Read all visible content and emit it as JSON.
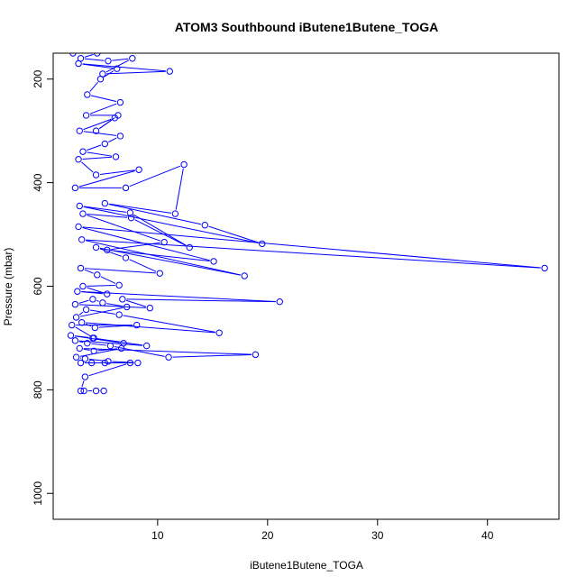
{
  "chart_data": {
    "type": "line",
    "title": "ATOM3 Southbound iButene1Butene_TOGA",
    "xlabel": "iButene1Butene_TOGA",
    "ylabel": "Pressure (mbar)",
    "xlim": [
      0.5,
      46.5
    ],
    "ylim": [
      1050,
      150
    ],
    "y_reversed": true,
    "x_ticks": [
      10,
      20,
      30,
      40
    ],
    "y_ticks": [
      200,
      400,
      600,
      800,
      1000
    ],
    "grid": false,
    "legend": "none",
    "series_color": "#0000FF",
    "series": [
      {
        "points": [
          [
            2.3,
            150
          ],
          [
            4.5,
            150
          ],
          [
            3.0,
            160
          ],
          [
            5.5,
            165
          ],
          [
            7.7,
            160
          ],
          [
            5.0,
            190
          ],
          [
            11.1,
            185
          ],
          [
            2.8,
            170
          ],
          [
            6.3,
            180
          ],
          [
            4.8,
            200
          ],
          [
            3.6,
            230
          ],
          [
            6.6,
            245
          ],
          [
            3.5,
            270
          ],
          [
            6.4,
            270
          ],
          [
            4.4,
            300
          ],
          [
            6.1,
            275
          ],
          [
            2.9,
            300
          ],
          [
            6.6,
            310
          ],
          [
            5.2,
            325
          ],
          [
            3.2,
            340
          ],
          [
            6.2,
            350
          ],
          [
            2.8,
            355
          ],
          [
            4.4,
            385
          ],
          [
            8.3,
            375
          ],
          [
            2.5,
            410
          ],
          [
            7.1,
            410
          ],
          [
            12.4,
            365
          ],
          [
            11.6,
            460
          ],
          [
            5.2,
            440
          ],
          [
            14.3,
            482
          ],
          [
            19.5,
            518
          ],
          [
            2.9,
            445
          ],
          [
            7.5,
            458
          ],
          [
            12.9,
            525
          ],
          [
            7.6,
            468
          ],
          [
            3.2,
            460
          ],
          [
            10.6,
            515
          ],
          [
            5.4,
            530
          ],
          [
            15.1,
            552
          ],
          [
            2.8,
            485
          ],
          [
            45.2,
            565
          ],
          [
            3.1,
            510
          ],
          [
            17.9,
            580
          ],
          [
            4.4,
            525
          ],
          [
            7.1,
            545
          ],
          [
            10.2,
            575
          ],
          [
            3.0,
            565
          ],
          [
            4.5,
            578
          ],
          [
            6.5,
            598
          ],
          [
            3.2,
            600
          ],
          [
            5.4,
            615
          ],
          [
            2.7,
            610
          ],
          [
            21.1,
            630
          ],
          [
            6.8,
            625
          ],
          [
            9.3,
            642
          ],
          [
            2.5,
            635
          ],
          [
            4.1,
            625
          ],
          [
            5.0,
            632
          ],
          [
            7.2,
            640
          ],
          [
            2.6,
            660
          ],
          [
            3.5,
            645
          ],
          [
            6.5,
            655
          ],
          [
            15.6,
            690
          ],
          [
            3.1,
            670
          ],
          [
            4.3,
            680
          ],
          [
            8.1,
            675
          ],
          [
            2.2,
            675
          ],
          [
            4.2,
            700
          ],
          [
            6.9,
            710
          ],
          [
            2.1,
            695
          ],
          [
            4.1,
            700
          ],
          [
            9.0,
            715
          ],
          [
            2.5,
            705
          ],
          [
            3.6,
            710
          ],
          [
            5.7,
            715
          ],
          [
            11.0,
            737
          ],
          [
            18.9,
            732
          ],
          [
            2.9,
            720
          ],
          [
            4.2,
            725
          ],
          [
            6.7,
            720
          ],
          [
            2.6,
            737
          ],
          [
            3.4,
            740
          ],
          [
            5.5,
            745
          ],
          [
            8.2,
            748
          ],
          [
            3.0,
            748
          ],
          [
            4.0,
            748
          ],
          [
            5.2,
            748
          ],
          [
            7.5,
            748
          ],
          [
            3.4,
            775
          ],
          [
            3.0,
            802
          ],
          [
            3.3,
            802
          ],
          [
            4.4,
            802
          ],
          [
            5.1,
            802
          ]
        ]
      }
    ]
  }
}
